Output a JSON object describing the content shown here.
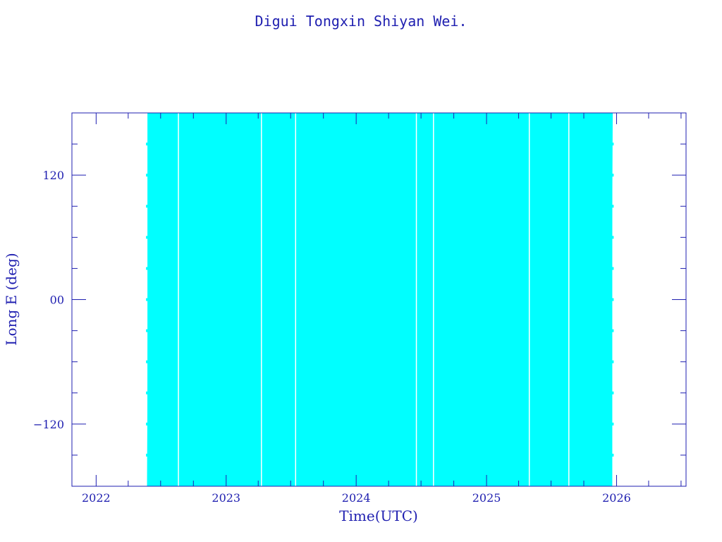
{
  "chart_data": {
    "type": "line",
    "title": "Digui Tongxin Shiyan Wei.",
    "xlabel": "Time(UTC)",
    "ylabel": "Long E (deg)",
    "xlim": [
      "2021-10-25",
      "2026-07-15"
    ],
    "ylim": [
      -180,
      180
    ],
    "x_ticks": [
      "2022",
      "2023",
      "2024",
      "2025",
      "2026"
    ],
    "y_ticks": [
      "120",
      "00",
      "−120"
    ],
    "grid": false,
    "series": [
      {
        "color": "#00ffff",
        "x_start": "2022-05-25",
        "x_end": "2025-12-20",
        "y_range": [
          -180,
          180
        ],
        "drift_period_days": 5
      }
    ]
  }
}
